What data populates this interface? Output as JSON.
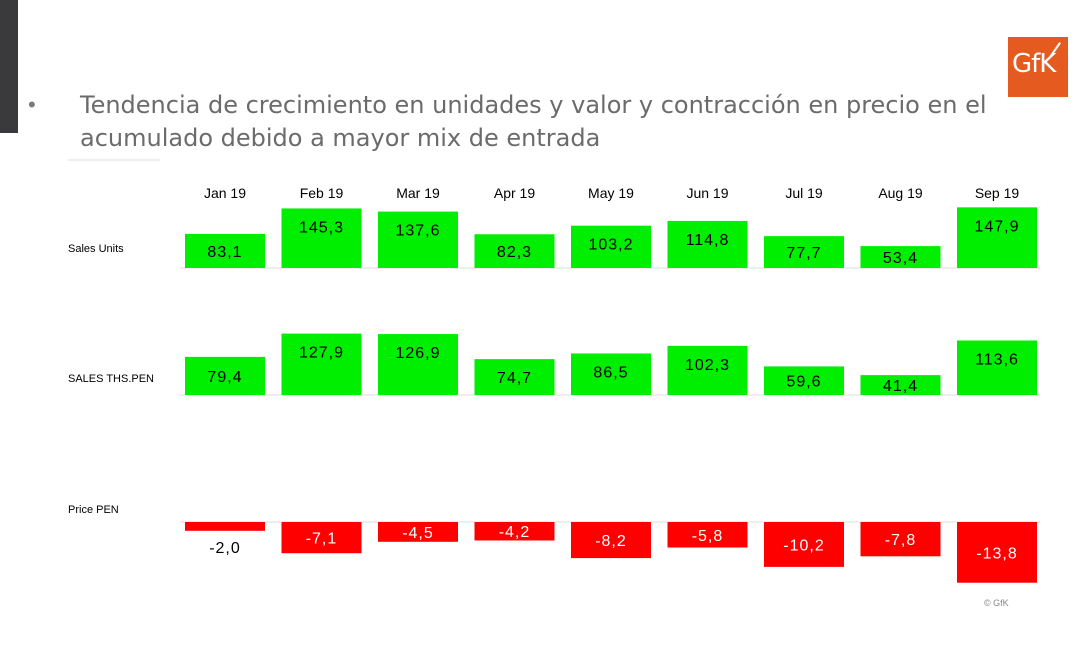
{
  "headline": {
    "bullet": "•",
    "text": "Tendencia de crecimiento en unidades y valor y contracción en precio en el acumulado debido a mayor mix de entrada"
  },
  "logo": {
    "text": "GfK",
    "color": "#e55a1f"
  },
  "footer": {
    "copyright": "© GfK"
  },
  "colors": {
    "positive": "#00ee00",
    "negative": "#ff0000",
    "negative_label_on_white": "#000000"
  },
  "chart_data": {
    "type": "bar",
    "categories": [
      "Jan 19",
      "Feb 19",
      "Mar 19",
      "Apr 19",
      "May 19",
      "Jun 19",
      "Jul 19",
      "Aug 19",
      "Sep 19"
    ],
    "series": [
      {
        "name": "Sales Units",
        "values": [
          83.1,
          145.3,
          137.6,
          82.3,
          103.2,
          114.8,
          77.7,
          53.4,
          147.9
        ],
        "labels": [
          "83,1",
          "145,3",
          "137,6",
          "82,3",
          "103,2",
          "114,8",
          "77,7",
          "53,4",
          "147,9"
        ]
      },
      {
        "name": "SALES THS.PEN",
        "values": [
          79.4,
          127.9,
          126.9,
          74.7,
          86.5,
          102.3,
          59.6,
          41.4,
          113.6
        ],
        "labels": [
          "79,4",
          "127,9",
          "126,9",
          "74,7",
          "86,5",
          "102,3",
          "59,6",
          "41,4",
          "113,6"
        ]
      },
      {
        "name": "Price PEN",
        "values": [
          -2.0,
          -7.1,
          -4.5,
          -4.2,
          -8.2,
          -5.8,
          -10.2,
          -7.8,
          -13.8
        ],
        "labels": [
          "-2,0",
          "-7,1",
          "-4,5",
          "-4,2",
          "-8,2",
          "-5,8",
          "-10,2",
          "-7,8",
          "-13,8"
        ]
      }
    ]
  }
}
